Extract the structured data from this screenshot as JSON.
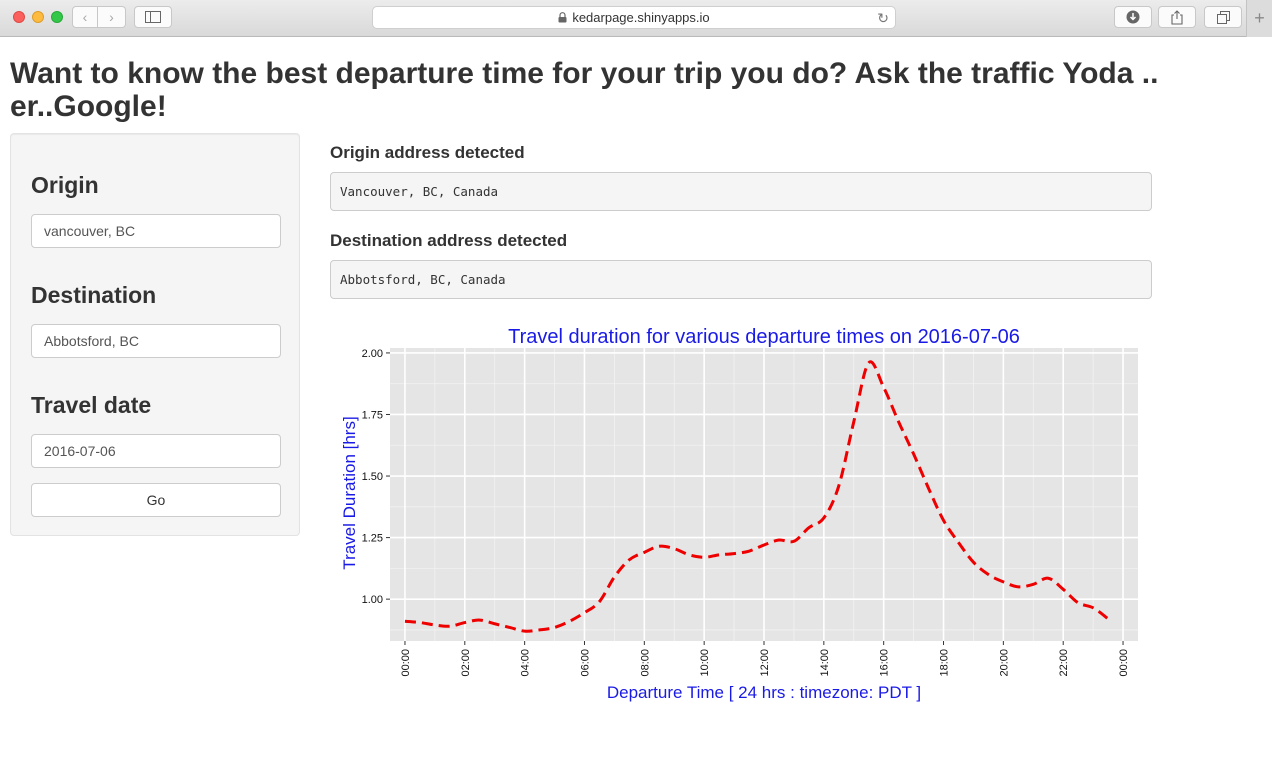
{
  "browser": {
    "url": "kedarpage.shinyapps.io"
  },
  "page": {
    "title": "Want to know the best departure time for your trip you do? Ask the traffic Yoda .. er..Google!"
  },
  "sidebar": {
    "origin_label": "Origin",
    "origin_value": "vancouver, BC",
    "destination_label": "Destination",
    "destination_value": "Abbotsford, BC",
    "date_label": "Travel date",
    "date_value": "2016-07-06",
    "go_label": "Go"
  },
  "main": {
    "origin_detected_label": "Origin address detected",
    "origin_detected_value": "Vancouver, BC, Canada",
    "destination_detected_label": "Destination address detected",
    "destination_detected_value": "Abbotsford, BC, Canada"
  },
  "colors": {
    "accent_title": "#1a1ae6",
    "line": "#ee0000",
    "panel_bg": "#e5e5e5"
  },
  "chart_data": {
    "type": "line",
    "title": "Travel duration for various departure times on 2016-07-06",
    "xlabel": "Departure Time [ 24 hrs : timezone: PDT ]",
    "ylabel": "Travel Duration [hrs]",
    "xlim": [
      -0.5,
      24.5
    ],
    "ylim": [
      0.83,
      2.02
    ],
    "x_ticks": [
      "00:00",
      "02:00",
      "04:00",
      "06:00",
      "08:00",
      "10:00",
      "12:00",
      "14:00",
      "16:00",
      "18:00",
      "20:00",
      "22:00",
      "00:00"
    ],
    "y_ticks": [
      "1.00",
      "1.25",
      "1.50",
      "1.75",
      "2.00"
    ],
    "grid": true,
    "series": [
      {
        "line_style": "dashed",
        "x": [
          0,
          0.5,
          1,
          1.5,
          2,
          2.5,
          3,
          3.5,
          4,
          4.5,
          5,
          5.5,
          6,
          6.5,
          7,
          7.5,
          8,
          8.5,
          9,
          9.5,
          10,
          10.5,
          11,
          11.5,
          12,
          12.5,
          13,
          13.5,
          14,
          14.5,
          15,
          15.5,
          16,
          16.5,
          17,
          17.5,
          18,
          18.5,
          19,
          19.5,
          20,
          20.5,
          21,
          21.5,
          22,
          22.5,
          23,
          23.5
        ],
        "y": [
          0.91,
          0.905,
          0.895,
          0.89,
          0.905,
          0.915,
          0.9,
          0.885,
          0.87,
          0.875,
          0.885,
          0.91,
          0.945,
          0.99,
          1.09,
          1.16,
          1.19,
          1.215,
          1.205,
          1.18,
          1.17,
          1.18,
          1.185,
          1.195,
          1.22,
          1.24,
          1.235,
          1.29,
          1.33,
          1.46,
          1.72,
          1.96,
          1.86,
          1.72,
          1.59,
          1.45,
          1.32,
          1.23,
          1.15,
          1.1,
          1.07,
          1.05,
          1.06,
          1.085,
          1.04,
          0.985,
          0.965,
          0.92
        ]
      }
    ]
  }
}
